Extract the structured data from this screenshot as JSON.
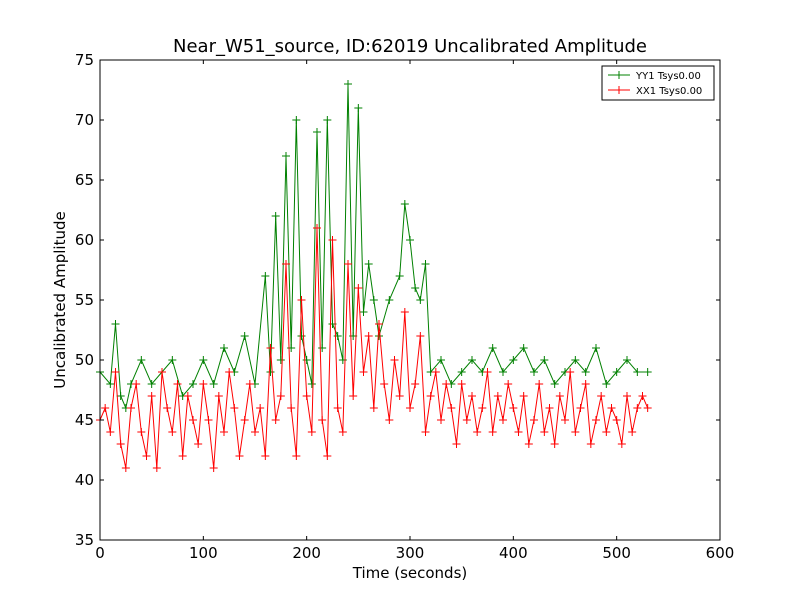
{
  "chart_data": {
    "type": "line",
    "title": "Near_W51_source, ID:62019 Uncalibrated Amplitude",
    "xlabel": "Time (seconds)",
    "ylabel": "Uncalibrated Amplitude",
    "xlim": [
      0,
      600
    ],
    "ylim": [
      35,
      75
    ],
    "xticks": [
      0,
      100,
      200,
      300,
      400,
      500,
      600
    ],
    "yticks": [
      35,
      40,
      45,
      50,
      55,
      60,
      65,
      70,
      75
    ],
    "grid": false,
    "legend_position": "top-right",
    "marker": "+",
    "series": [
      {
        "name": "YY1 Tsys0.00",
        "color": "#008000",
        "x": [
          0,
          10,
          15,
          20,
          25,
          30,
          40,
          50,
          60,
          70,
          80,
          90,
          100,
          110,
          120,
          130,
          140,
          150,
          160,
          165,
          170,
          175,
          180,
          185,
          190,
          195,
          200,
          205,
          210,
          215,
          220,
          225,
          230,
          235,
          240,
          245,
          250,
          255,
          260,
          265,
          270,
          280,
          290,
          295,
          300,
          305,
          310,
          315,
          320,
          330,
          340,
          350,
          360,
          370,
          380,
          390,
          400,
          410,
          420,
          430,
          440,
          450,
          460,
          470,
          480,
          490,
          500,
          510,
          520,
          530
        ],
        "y": [
          49,
          48,
          53,
          47,
          46,
          48,
          50,
          48,
          49,
          50,
          47,
          48,
          50,
          48,
          51,
          49,
          52,
          48,
          57,
          49,
          62,
          50,
          67,
          51,
          70,
          52,
          50,
          48,
          69,
          51,
          70,
          53,
          52,
          50,
          73,
          52,
          71,
          54,
          58,
          55,
          52,
          55,
          57,
          63,
          60,
          56,
          55,
          58,
          49,
          50,
          48,
          49,
          50,
          49,
          51,
          49,
          50,
          51,
          49,
          50,
          48,
          49,
          50,
          49,
          51,
          48,
          49,
          50,
          49,
          49
        ]
      },
      {
        "name": "XX1 Tsys0.00",
        "color": "#ff0000",
        "x": [
          0,
          5,
          10,
          15,
          20,
          25,
          30,
          35,
          40,
          45,
          50,
          55,
          60,
          65,
          70,
          75,
          80,
          85,
          90,
          95,
          100,
          105,
          110,
          115,
          120,
          125,
          130,
          135,
          140,
          145,
          150,
          155,
          160,
          165,
          170,
          175,
          180,
          185,
          190,
          195,
          200,
          205,
          210,
          215,
          220,
          225,
          230,
          235,
          240,
          245,
          250,
          255,
          260,
          265,
          270,
          275,
          280,
          285,
          290,
          295,
          300,
          305,
          310,
          315,
          320,
          325,
          330,
          335,
          340,
          345,
          350,
          355,
          360,
          365,
          370,
          375,
          380,
          385,
          390,
          395,
          400,
          405,
          410,
          415,
          420,
          425,
          430,
          435,
          440,
          445,
          450,
          455,
          460,
          465,
          470,
          475,
          480,
          485,
          490,
          495,
          500,
          505,
          510,
          515,
          520,
          525,
          530
        ],
        "y": [
          45,
          46,
          44,
          49,
          43,
          41,
          46,
          48,
          44,
          42,
          47,
          41,
          49,
          46,
          44,
          48,
          42,
          47,
          45,
          43,
          48,
          45,
          41,
          47,
          44,
          49,
          46,
          42,
          45,
          48,
          44,
          46,
          42,
          51,
          45,
          47,
          58,
          46,
          42,
          55,
          47,
          44,
          61,
          45,
          42,
          60,
          46,
          44,
          58,
          47,
          56,
          49,
          52,
          46,
          53,
          48,
          45,
          50,
          47,
          54,
          46,
          48,
          52,
          44,
          47,
          49,
          45,
          48,
          46,
          43,
          48,
          45,
          47,
          44,
          46,
          49,
          44,
          47,
          45,
          48,
          46,
          44,
          47,
          43,
          45,
          48,
          44,
          46,
          43,
          47,
          45,
          49,
          44,
          46,
          48,
          43,
          45,
          47,
          44,
          46,
          45,
          43,
          47,
          44,
          46,
          47,
          46
        ]
      }
    ]
  }
}
